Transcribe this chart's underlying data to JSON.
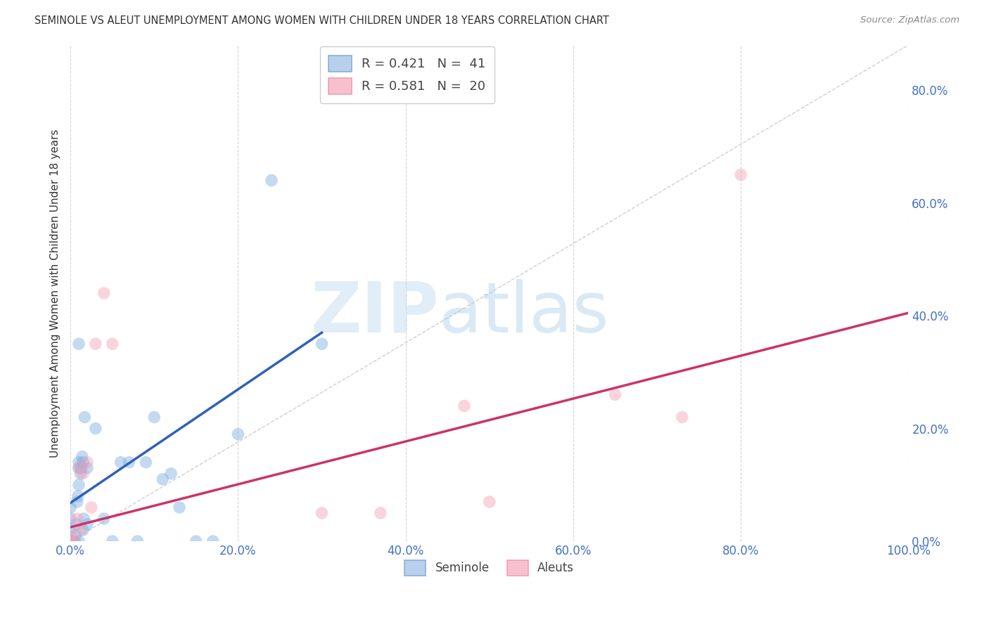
{
  "title": "SEMINOLE VS ALEUT UNEMPLOYMENT AMONG WOMEN WITH CHILDREN UNDER 18 YEARS CORRELATION CHART",
  "source": "Source: ZipAtlas.com",
  "ylabel": "Unemployment Among Women with Children Under 18 years",
  "xlim": [
    0,
    1.0
  ],
  "ylim": [
    0,
    0.88
  ],
  "xticks": [
    0.0,
    0.2,
    0.4,
    0.6,
    0.8,
    1.0
  ],
  "yticks": [
    0.0,
    0.2,
    0.4,
    0.6,
    0.8
  ],
  "xtick_labels": [
    "0.0%",
    "20.0%",
    "40.0%",
    "60.0%",
    "80.0%",
    "100.0%"
  ],
  "ytick_labels": [
    "0.0%",
    "20.0%",
    "40.0%",
    "60.0%",
    "80.0%"
  ],
  "background_color": "#ffffff",
  "grid_color": "#cccccc",
  "seminole_color": "#7aafdf",
  "aleuts_color": "#f4a0b5",
  "seminole_line_color": "#3060bb",
  "aleuts_line_color": "#cc3366",
  "seminole_R": "0.421",
  "seminole_N": "41",
  "aleuts_R": "0.581",
  "aleuts_N": "20",
  "watermark_zip": "ZIP",
  "watermark_atlas": "atlas",
  "legend_label_1": "R = 0.421   N =  41",
  "legend_label_2": "R = 0.581   N =  20",
  "legend_bottom_1": "Seminole",
  "legend_bottom_2": "Aleuts",
  "seminole_x": [
    0.0,
    0.0,
    0.0,
    0.0,
    0.0,
    0.0,
    0.005,
    0.006,
    0.007,
    0.008,
    0.009,
    0.01,
    0.01,
    0.01,
    0.01,
    0.01,
    0.012,
    0.013,
    0.014,
    0.015,
    0.015,
    0.016,
    0.017,
    0.02,
    0.02,
    0.03,
    0.04,
    0.05,
    0.06,
    0.07,
    0.08,
    0.09,
    0.1,
    0.11,
    0.12,
    0.13,
    0.15,
    0.17,
    0.2,
    0.24,
    0.3
  ],
  "seminole_y": [
    0.0,
    0.0,
    0.0,
    0.02,
    0.04,
    0.06,
    0.0,
    0.01,
    0.03,
    0.07,
    0.08,
    0.0,
    0.1,
    0.13,
    0.14,
    0.35,
    0.12,
    0.13,
    0.15,
    0.02,
    0.14,
    0.04,
    0.22,
    0.03,
    0.13,
    0.2,
    0.04,
    0.0,
    0.14,
    0.14,
    0.0,
    0.14,
    0.22,
    0.11,
    0.12,
    0.06,
    0.0,
    0.0,
    0.19,
    0.64,
    0.35
  ],
  "aleuts_x": [
    0.0,
    0.0,
    0.0,
    0.005,
    0.008,
    0.01,
    0.012,
    0.015,
    0.02,
    0.025,
    0.03,
    0.04,
    0.05,
    0.3,
    0.37,
    0.47,
    0.5,
    0.65,
    0.73,
    0.8
  ],
  "aleuts_y": [
    0.0,
    0.0,
    0.01,
    0.0,
    0.04,
    0.13,
    0.02,
    0.12,
    0.14,
    0.06,
    0.35,
    0.44,
    0.35,
    0.05,
    0.05,
    0.24,
    0.07,
    0.26,
    0.22,
    0.65
  ],
  "seminole_trend_x": [
    0.0,
    0.3
  ],
  "seminole_trend_y": [
    0.068,
    0.37
  ],
  "aleuts_trend_x": [
    0.0,
    1.0
  ],
  "aleuts_trend_y": [
    0.025,
    0.405
  ]
}
